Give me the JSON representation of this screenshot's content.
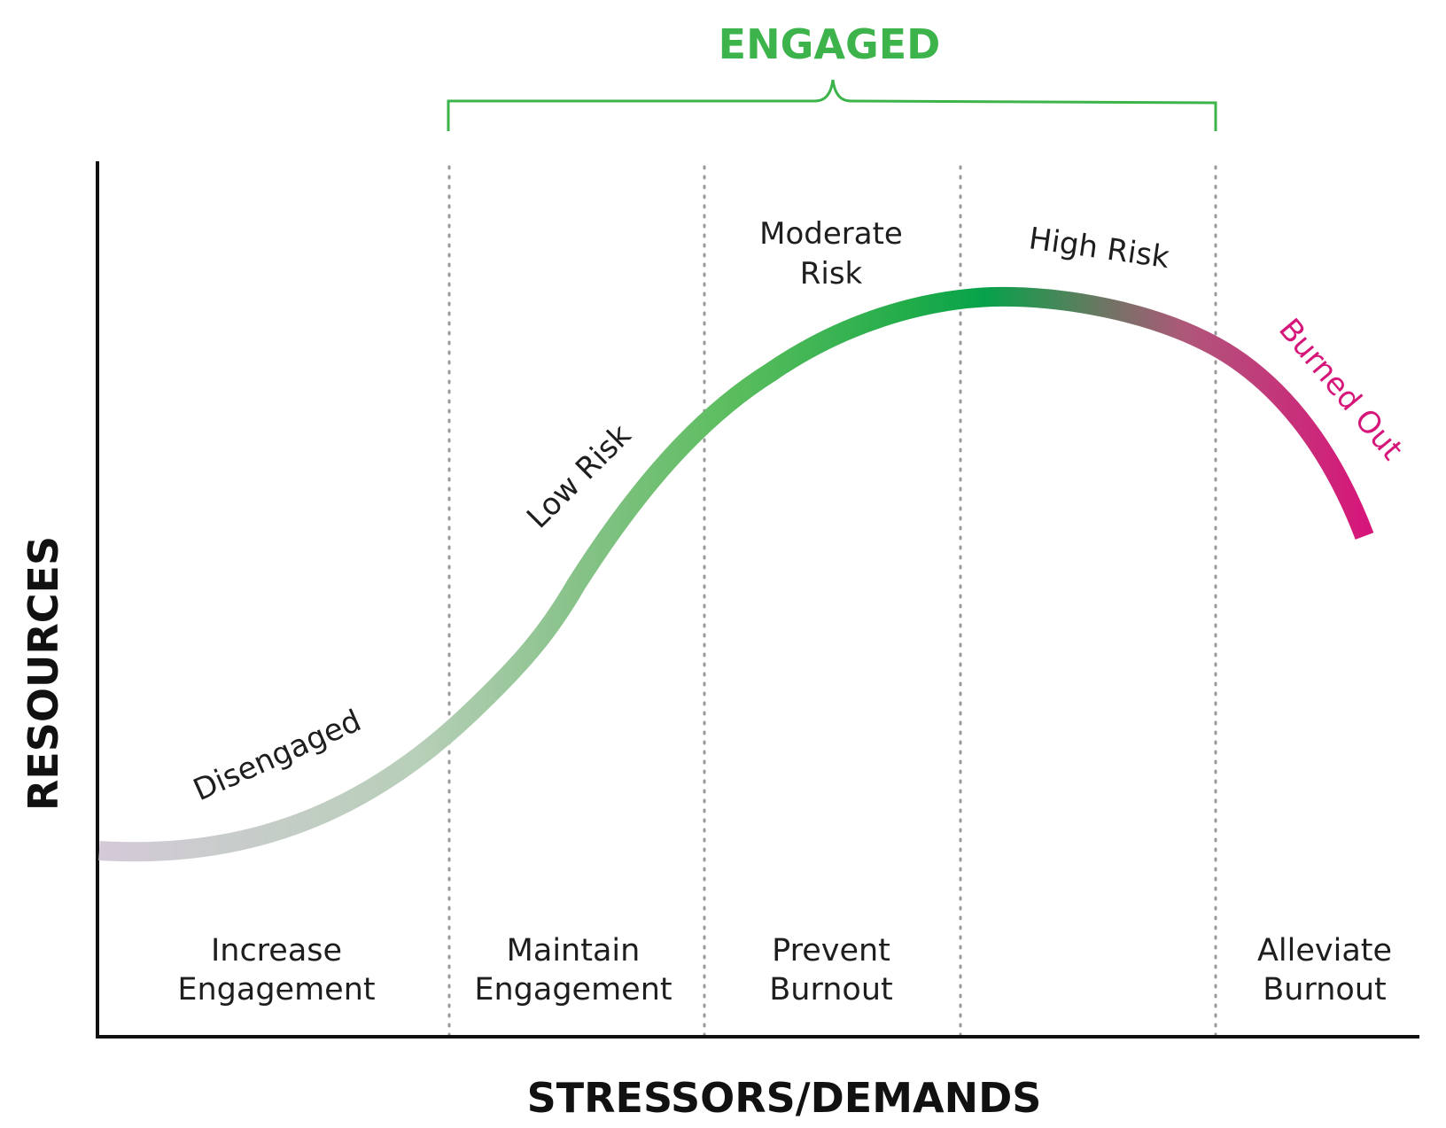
{
  "header": {
    "engaged_label": "ENGAGED"
  },
  "axes": {
    "y_label": "RESOURCES",
    "x_label": "STRESSORS/DEMANDS"
  },
  "curve_labels": {
    "disengaged": "Disengaged",
    "low_risk": "Low Risk",
    "moderate_risk_line1": "Moderate",
    "moderate_risk_line2": "Risk",
    "high_risk": "High Risk",
    "burned_out": "Burned Out"
  },
  "zones": [
    {
      "line1": "Increase",
      "line2": "Engagement"
    },
    {
      "line1": "Maintain",
      "line2": "Engagement"
    },
    {
      "line1": "Prevent",
      "line2": "Burnout"
    },
    {
      "line1": "",
      "line2": ""
    },
    {
      "line1": "Alleviate",
      "line2": "Burnout"
    }
  ],
  "colors": {
    "engaged_green": "#3cb44b",
    "curve_start": "#d2c8d6",
    "curve_mid": "#7dbf7e",
    "curve_peak": "#06a24a",
    "curve_end": "#d6177a",
    "burned_out_text": "#d6177a",
    "axis": "#111111",
    "divider": "#9a9a9a"
  }
}
